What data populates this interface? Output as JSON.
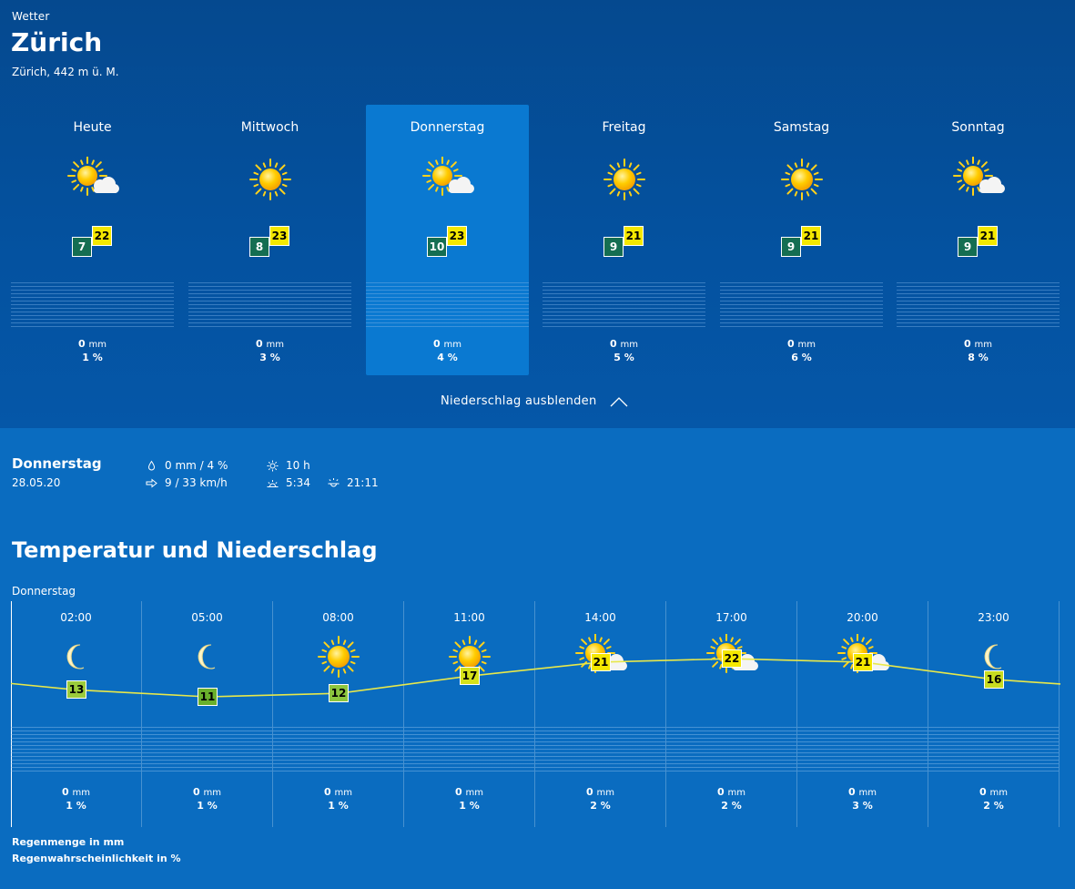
{
  "header": {
    "kicker": "Wetter",
    "city": "Zürich",
    "altitude": "Zürich, 442 m ü. M."
  },
  "days": [
    {
      "name": "Heute",
      "icon": "sun-cloud-icon",
      "min": "7",
      "max": "22",
      "mm": "0",
      "pct": "1 %"
    },
    {
      "name": "Mittwoch",
      "icon": "sun-icon",
      "min": "8",
      "max": "23",
      "mm": "0",
      "pct": "3 %"
    },
    {
      "name": "Donnerstag",
      "icon": "sun-cloud-icon",
      "min": "10",
      "max": "23",
      "mm": "0",
      "pct": "4 %",
      "selected": true
    },
    {
      "name": "Freitag",
      "icon": "sun-icon",
      "min": "9",
      "max": "21",
      "mm": "0",
      "pct": "5 %"
    },
    {
      "name": "Samstag",
      "icon": "sun-icon",
      "min": "9",
      "max": "21",
      "mm": "0",
      "pct": "6 %"
    },
    {
      "name": "Sonntag",
      "icon": "sun-cloud-icon",
      "min": "9",
      "max": "21",
      "mm": "0",
      "pct": "8 %"
    }
  ],
  "units": {
    "mm": "mm"
  },
  "toggle_label": "Niederschlag ausblenden",
  "detail": {
    "day": "Donnerstag",
    "date": "28.05.20",
    "rain": "0 mm / 4 %",
    "wind": "9 / 33 km/h",
    "sunshine": "10 h",
    "sunrise": "5:34",
    "sunset": "21:11"
  },
  "section": {
    "title": "Temperatur und Niederschlag",
    "day": "Donnerstag"
  },
  "hours": [
    {
      "time": "02:00",
      "icon": "moon-icon",
      "temp": 13,
      "mm": "0",
      "pct": "1 %"
    },
    {
      "time": "05:00",
      "icon": "moon-icon",
      "temp": 11,
      "mm": "0",
      "pct": "1 %"
    },
    {
      "time": "08:00",
      "icon": "sun-icon",
      "temp": 12,
      "mm": "0",
      "pct": "1 %"
    },
    {
      "time": "11:00",
      "icon": "sun-icon",
      "temp": 17,
      "mm": "0",
      "pct": "1 %"
    },
    {
      "time": "14:00",
      "icon": "sun-cloud-icon",
      "temp": 21,
      "mm": "0",
      "pct": "2 %"
    },
    {
      "time": "17:00",
      "icon": "sun-cloud-icon",
      "temp": 22,
      "mm": "0",
      "pct": "2 %"
    },
    {
      "time": "20:00",
      "icon": "sun-cloud-icon",
      "temp": 21,
      "mm": "0",
      "pct": "3 %"
    },
    {
      "time": "23:00",
      "icon": "moon-icon",
      "temp": 16,
      "mm": "0",
      "pct": "2 %"
    }
  ],
  "temp_colors": {
    "11": "#6ab02c",
    "12": "#8cc63f",
    "13": "#9ccb3b",
    "16": "#c8dc20",
    "17": "#d6e21a",
    "21": "#f5e800",
    "22": "#f5e800"
  },
  "colors": {
    "min_badge": "#156e52",
    "max_badge": "#f5e800",
    "curve": "#e8e84a"
  },
  "legend": {
    "line1": "Regenmenge in mm",
    "line2": "Regenwahrscheinlichkeit in %"
  }
}
